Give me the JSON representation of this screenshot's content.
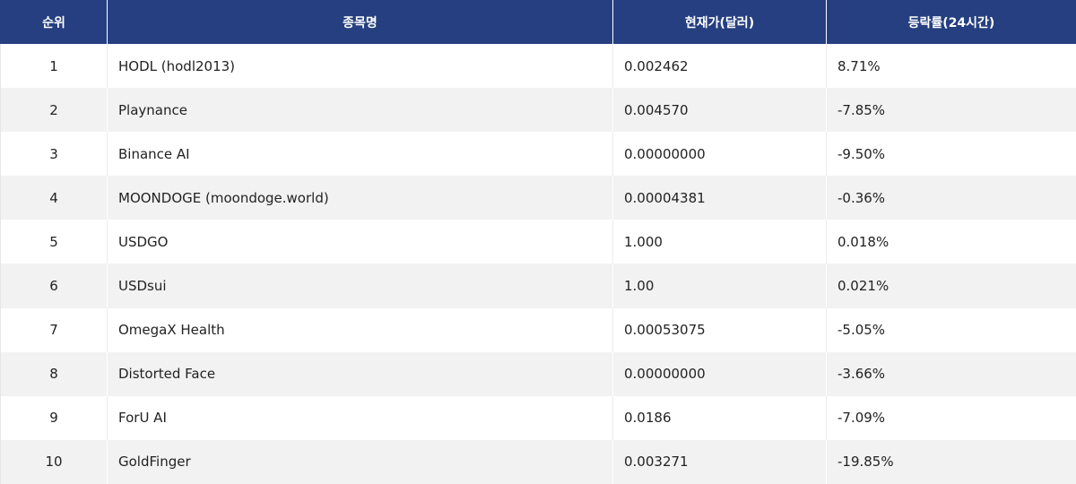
{
  "header": {
    "rank": "순위",
    "name": "종목명",
    "price": "현재가(달러)",
    "change": "등락률(24시간)"
  },
  "rows": [
    {
      "rank": "1",
      "name": "HODL (hodl2013)",
      "price": "0.002462",
      "change": "8.71%"
    },
    {
      "rank": "2",
      "name": "Playnance",
      "price": "0.004570",
      "change": "-7.85%"
    },
    {
      "rank": "3",
      "name": "Binance AI",
      "price": "0.00000000",
      "change": "-9.50%"
    },
    {
      "rank": "4",
      "name": "MOONDOGE (moondoge.world)",
      "price": "0.00004381",
      "change": "-0.36%"
    },
    {
      "rank": "5",
      "name": "USDGO",
      "price": "1.000",
      "change": "0.018%"
    },
    {
      "rank": "6",
      "name": "USDsui",
      "price": "1.00",
      "change": "0.021%"
    },
    {
      "rank": "7",
      "name": "OmegaX Health",
      "price": "0.00053075",
      "change": "-5.05%"
    },
    {
      "rank": "8",
      "name": "Distorted Face",
      "price": "0.00000000",
      "change": "-3.66%"
    },
    {
      "rank": "9",
      "name": "ForU AI",
      "price": "0.0186",
      "change": "-7.09%"
    },
    {
      "rank": "10",
      "name": "GoldFinger",
      "price": "0.003271",
      "change": "-19.85%"
    }
  ],
  "colors": {
    "header_bg": "#253f80",
    "header_text": "#ffffff",
    "row_alt_bg": "#f2f2f2"
  }
}
